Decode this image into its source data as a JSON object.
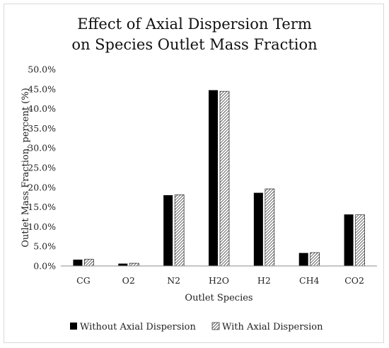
{
  "chart_data": {
    "type": "bar",
    "title_line1": "Effect of Axial Dispersion Term",
    "title_line2": "on Species Outlet Mass Fraction",
    "xlabel": "Outlet Species",
    "ylabel": "Outlet Mass Fraction, percent (%)",
    "categories": [
      "CG",
      "O2",
      "N2",
      "H2O",
      "H2",
      "CH4",
      "CO2"
    ],
    "series": [
      {
        "name": "Without Axial Dispersion",
        "fill": "solid-black",
        "values": [
          1.6,
          0.6,
          18.0,
          44.7,
          18.6,
          3.3,
          13.1
        ]
      },
      {
        "name": "With Axial Dispersion",
        "fill": "hatched",
        "values": [
          1.7,
          0.7,
          18.1,
          44.4,
          19.6,
          3.4,
          13.0
        ]
      }
    ],
    "ylim": [
      0,
      50
    ],
    "yticks": [
      "0.0%",
      "5.0%",
      "10.0%",
      "15.0%",
      "20.0%",
      "25.0%",
      "30.0%",
      "35.0%",
      "40.0%",
      "45.0%",
      "50.0%"
    ],
    "grid": false,
    "legend_position": "bottom"
  },
  "colors": {
    "bar_solid": "#000000",
    "hatch": "#000000",
    "axis": "#8c8c8c"
  }
}
